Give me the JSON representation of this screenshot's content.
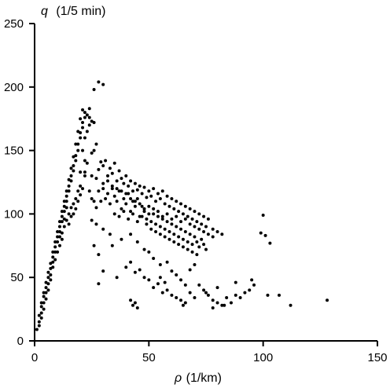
{
  "chart_data": {
    "type": "scatter",
    "title": "",
    "xlabel_symbol": "ρ",
    "xlabel_unit": "(1/km)",
    "ylabel_symbol": "q",
    "ylabel_unit": "(1/5 min)",
    "xlim": [
      0,
      150
    ],
    "ylim": [
      0,
      250
    ],
    "xticks": [
      0,
      50,
      100,
      150
    ],
    "yticks": [
      0,
      50,
      100,
      150,
      200,
      250
    ],
    "grid": false,
    "marker_color": "#000000",
    "points": [
      [
        1,
        9
      ],
      [
        2,
        15
      ],
      [
        3,
        22
      ],
      [
        3,
        27
      ],
      [
        4,
        30
      ],
      [
        4,
        35
      ],
      [
        5,
        38
      ],
      [
        5,
        42
      ],
      [
        6,
        45
      ],
      [
        6,
        50
      ],
      [
        7,
        52
      ],
      [
        7,
        57
      ],
      [
        8,
        62
      ],
      [
        8,
        66
      ],
      [
        9,
        70
      ],
      [
        9,
        74
      ],
      [
        10,
        78
      ],
      [
        10,
        82
      ],
      [
        11,
        86
      ],
      [
        11,
        90
      ],
      [
        12,
        94
      ],
      [
        12,
        98
      ],
      [
        13,
        102
      ],
      [
        13,
        106
      ],
      [
        14,
        110
      ],
      [
        14,
        114
      ],
      [
        15,
        118
      ],
      [
        15,
        122
      ],
      [
        16,
        126
      ],
      [
        16,
        130
      ],
      [
        17,
        134
      ],
      [
        17,
        138
      ],
      [
        18,
        142
      ],
      [
        18,
        146
      ],
      [
        19,
        150
      ],
      [
        19,
        155
      ],
      [
        20,
        160
      ],
      [
        20,
        164
      ],
      [
        21,
        168
      ],
      [
        21,
        172
      ],
      [
        22,
        176
      ],
      [
        22,
        180
      ],
      [
        21,
        182
      ],
      [
        20,
        175
      ],
      [
        19,
        165
      ],
      [
        18,
        155
      ],
      [
        17,
        145
      ],
      [
        16,
        136
      ],
      [
        15,
        127
      ],
      [
        14,
        118
      ],
      [
        13,
        110
      ],
      [
        12,
        102
      ],
      [
        11,
        94
      ],
      [
        10,
        86
      ],
      [
        9,
        78
      ],
      [
        8,
        70
      ],
      [
        7,
        61
      ],
      [
        6,
        54
      ],
      [
        5,
        46
      ],
      [
        4,
        38
      ],
      [
        3,
        30
      ],
      [
        2,
        20
      ],
      [
        12,
        85
      ],
      [
        13,
        90
      ],
      [
        14,
        95
      ],
      [
        15,
        100
      ],
      [
        16,
        105
      ],
      [
        17,
        108
      ],
      [
        18,
        112
      ],
      [
        19,
        118
      ],
      [
        20,
        122
      ],
      [
        10,
        70
      ],
      [
        11,
        75
      ],
      [
        12,
        80
      ],
      [
        15,
        92
      ],
      [
        16,
        98
      ],
      [
        17,
        100
      ],
      [
        18,
        104
      ],
      [
        19,
        110
      ],
      [
        20,
        115
      ],
      [
        21,
        120
      ],
      [
        22,
        130
      ],
      [
        23,
        140
      ],
      [
        21,
        150
      ],
      [
        22,
        160
      ],
      [
        23,
        165
      ],
      [
        24,
        170
      ],
      [
        22,
        142
      ],
      [
        14,
        105
      ],
      [
        13,
        96
      ],
      [
        11,
        82
      ],
      [
        9,
        64
      ],
      [
        8,
        58
      ],
      [
        7,
        48
      ],
      [
        6,
        40
      ],
      [
        5,
        33
      ],
      [
        4,
        25
      ],
      [
        3,
        18
      ],
      [
        2,
        12
      ],
      [
        28,
        204
      ],
      [
        30,
        202
      ],
      [
        26,
        198
      ],
      [
        24,
        183
      ],
      [
        23,
        178
      ],
      [
        24,
        176
      ],
      [
        25,
        173
      ],
      [
        26,
        172
      ],
      [
        27,
        155
      ],
      [
        26,
        150
      ],
      [
        25,
        148
      ],
      [
        20,
        133
      ],
      [
        22,
        133
      ],
      [
        25,
        130
      ],
      [
        27,
        128
      ],
      [
        28,
        135
      ],
      [
        29,
        141
      ],
      [
        30,
        138
      ],
      [
        31,
        142
      ],
      [
        32,
        130
      ],
      [
        33,
        136
      ],
      [
        34,
        132
      ],
      [
        35,
        140
      ],
      [
        36,
        126
      ],
      [
        37,
        134
      ],
      [
        38,
        128
      ],
      [
        39,
        124
      ],
      [
        40,
        130
      ],
      [
        41,
        122
      ],
      [
        42,
        126
      ],
      [
        43,
        118
      ],
      [
        44,
        124
      ],
      [
        45,
        119
      ],
      [
        46,
        122
      ],
      [
        47,
        116
      ],
      [
        48,
        121
      ],
      [
        49,
        113
      ],
      [
        50,
        118
      ],
      [
        51,
        114
      ],
      [
        52,
        120
      ],
      [
        53,
        110
      ],
      [
        54,
        116
      ],
      [
        55,
        112
      ],
      [
        56,
        118
      ],
      [
        57,
        108
      ],
      [
        58,
        114
      ],
      [
        59,
        106
      ],
      [
        60,
        112
      ],
      [
        61,
        104
      ],
      [
        62,
        110
      ],
      [
        63,
        102
      ],
      [
        64,
        108
      ],
      [
        65,
        100
      ],
      [
        66,
        106
      ],
      [
        67,
        98
      ],
      [
        68,
        104
      ],
      [
        69,
        96
      ],
      [
        70,
        102
      ],
      [
        71,
        94
      ],
      [
        72,
        100
      ],
      [
        73,
        92
      ],
      [
        74,
        98
      ],
      [
        75,
        90
      ],
      [
        76,
        96
      ],
      [
        78,
        88
      ],
      [
        80,
        86
      ],
      [
        82,
        84
      ],
      [
        24,
        118
      ],
      [
        25,
        112
      ],
      [
        26,
        110
      ],
      [
        27,
        105
      ],
      [
        28,
        118
      ],
      [
        29,
        110
      ],
      [
        30,
        120
      ],
      [
        31,
        112
      ],
      [
        32,
        116
      ],
      [
        33,
        108
      ],
      [
        34,
        120
      ],
      [
        35,
        114
      ],
      [
        36,
        110
      ],
      [
        37,
        118
      ],
      [
        38,
        104
      ],
      [
        39,
        112
      ],
      [
        40,
        108
      ],
      [
        41,
        116
      ],
      [
        42,
        102
      ],
      [
        43,
        110
      ],
      [
        44,
        106
      ],
      [
        45,
        112
      ],
      [
        46,
        98
      ],
      [
        47,
        106
      ],
      [
        48,
        102
      ],
      [
        49,
        96
      ],
      [
        50,
        100
      ],
      [
        51,
        94
      ],
      [
        52,
        104
      ],
      [
        53,
        92
      ],
      [
        54,
        98
      ],
      [
        55,
        90
      ],
      [
        56,
        96
      ],
      [
        57,
        88
      ],
      [
        58,
        94
      ],
      [
        59,
        86
      ],
      [
        60,
        92
      ],
      [
        61,
        84
      ],
      [
        62,
        90
      ],
      [
        63,
        82
      ],
      [
        64,
        88
      ],
      [
        65,
        80
      ],
      [
        66,
        86
      ],
      [
        67,
        78
      ],
      [
        68,
        84
      ],
      [
        69,
        76
      ],
      [
        70,
        82
      ],
      [
        71,
        78
      ],
      [
        72,
        74
      ],
      [
        73,
        80
      ],
      [
        74,
        76
      ],
      [
        75,
        72
      ],
      [
        30,
        124
      ],
      [
        32,
        126
      ],
      [
        34,
        122
      ],
      [
        36,
        120
      ],
      [
        38,
        118
      ],
      [
        40,
        116
      ],
      [
        42,
        112
      ],
      [
        44,
        110
      ],
      [
        46,
        108
      ],
      [
        48,
        104
      ],
      [
        50,
        106
      ],
      [
        52,
        100
      ],
      [
        54,
        102
      ],
      [
        56,
        98
      ],
      [
        58,
        100
      ],
      [
        60,
        96
      ],
      [
        62,
        98
      ],
      [
        64,
        94
      ],
      [
        66,
        96
      ],
      [
        68,
        92
      ],
      [
        70,
        90
      ],
      [
        72,
        88
      ],
      [
        74,
        86
      ],
      [
        76,
        84
      ],
      [
        78,
        82
      ],
      [
        35,
        100
      ],
      [
        37,
        98
      ],
      [
        39,
        102
      ],
      [
        41,
        96
      ],
      [
        43,
        100
      ],
      [
        45,
        94
      ],
      [
        47,
        98
      ],
      [
        49,
        92
      ],
      [
        51,
        88
      ],
      [
        53,
        86
      ],
      [
        55,
        84
      ],
      [
        57,
        82
      ],
      [
        59,
        80
      ],
      [
        61,
        78
      ],
      [
        63,
        76
      ],
      [
        65,
        74
      ],
      [
        67,
        72
      ],
      [
        69,
        70
      ],
      [
        71,
        68
      ],
      [
        25,
        95
      ],
      [
        27,
        92
      ],
      [
        30,
        88
      ],
      [
        33,
        84
      ],
      [
        26,
        75
      ],
      [
        28,
        68
      ],
      [
        34,
        75
      ],
      [
        38,
        80
      ],
      [
        42,
        84
      ],
      [
        45,
        78
      ],
      [
        48,
        72
      ],
      [
        50,
        70
      ],
      [
        52,
        65
      ],
      [
        55,
        60
      ],
      [
        58,
        62
      ],
      [
        28,
        45
      ],
      [
        30,
        55
      ],
      [
        36,
        50
      ],
      [
        40,
        58
      ],
      [
        42,
        62
      ],
      [
        44,
        54
      ],
      [
        46,
        56
      ],
      [
        48,
        50
      ],
      [
        50,
        48
      ],
      [
        52,
        42
      ],
      [
        54,
        45
      ],
      [
        56,
        38
      ],
      [
        58,
        40
      ],
      [
        60,
        36
      ],
      [
        62,
        34
      ],
      [
        64,
        32
      ],
      [
        66,
        30
      ],
      [
        68,
        38
      ],
      [
        70,
        34
      ],
      [
        72,
        44
      ],
      [
        74,
        40
      ],
      [
        76,
        36
      ],
      [
        78,
        32
      ],
      [
        80,
        30
      ],
      [
        82,
        28
      ],
      [
        84,
        34
      ],
      [
        86,
        30
      ],
      [
        88,
        36
      ],
      [
        90,
        34
      ],
      [
        92,
        38
      ],
      [
        94,
        40
      ],
      [
        96,
        44
      ],
      [
        42,
        32
      ],
      [
        43,
        28
      ],
      [
        44,
        30
      ],
      [
        45,
        26
      ],
      [
        55,
        50
      ],
      [
        57,
        46
      ],
      [
        60,
        55
      ],
      [
        62,
        52
      ],
      [
        64,
        48
      ],
      [
        66,
        44
      ],
      [
        68,
        56
      ],
      [
        70,
        60
      ],
      [
        65,
        28
      ],
      [
        75,
        38
      ],
      [
        78,
        26
      ],
      [
        83,
        28
      ],
      [
        100,
        99
      ],
      [
        101,
        83
      ],
      [
        103,
        77
      ],
      [
        99,
        85
      ],
      [
        102,
        36
      ],
      [
        107,
        36
      ],
      [
        112,
        28
      ],
      [
        128,
        32
      ],
      [
        95,
        48
      ],
      [
        88,
        46
      ],
      [
        80,
        42
      ]
    ]
  }
}
